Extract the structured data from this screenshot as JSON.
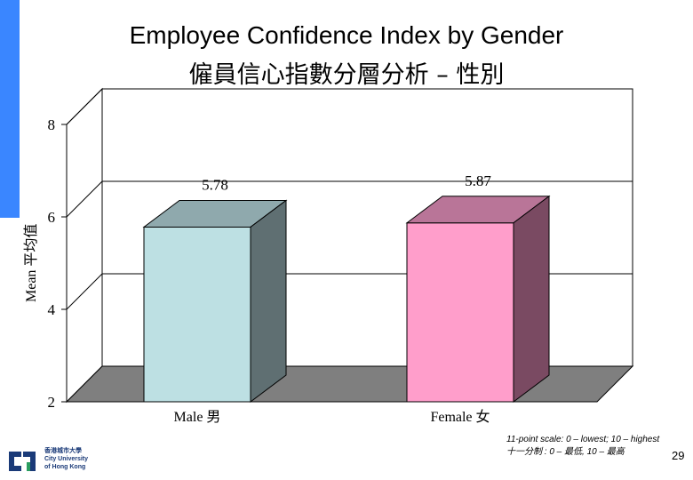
{
  "title": "Employee Confidence Index by Gender",
  "subtitle": "僱員信心指數分層分析 – 性別",
  "colors": {
    "accent": "#3a86ff",
    "male": "#bde0e3",
    "female": "#ff9ecb"
  },
  "chart_data": {
    "type": "bar",
    "categories": [
      "Male 男",
      "Female 女"
    ],
    "values": [
      5.78,
      5.87
    ],
    "value_labels": [
      "5.78",
      "5.87"
    ],
    "ylabel": "Mean 平均值",
    "ylim": [
      2,
      8
    ],
    "yticks": [
      "2",
      "4",
      "6",
      "8"
    ],
    "ytick_values": [
      2,
      4,
      6,
      8
    ],
    "grid": true,
    "style": "3d"
  },
  "footer": {
    "scale_note_en": "11-point scale: 0 – lowest; 10 – highest",
    "scale_note_zh": "十一分制 : 0 – 最低, 10 – 最高",
    "page_number": "29",
    "logo_text_zh": "香港城市大學",
    "logo_text_en1": "City University",
    "logo_text_en2": "of Hong Kong"
  }
}
